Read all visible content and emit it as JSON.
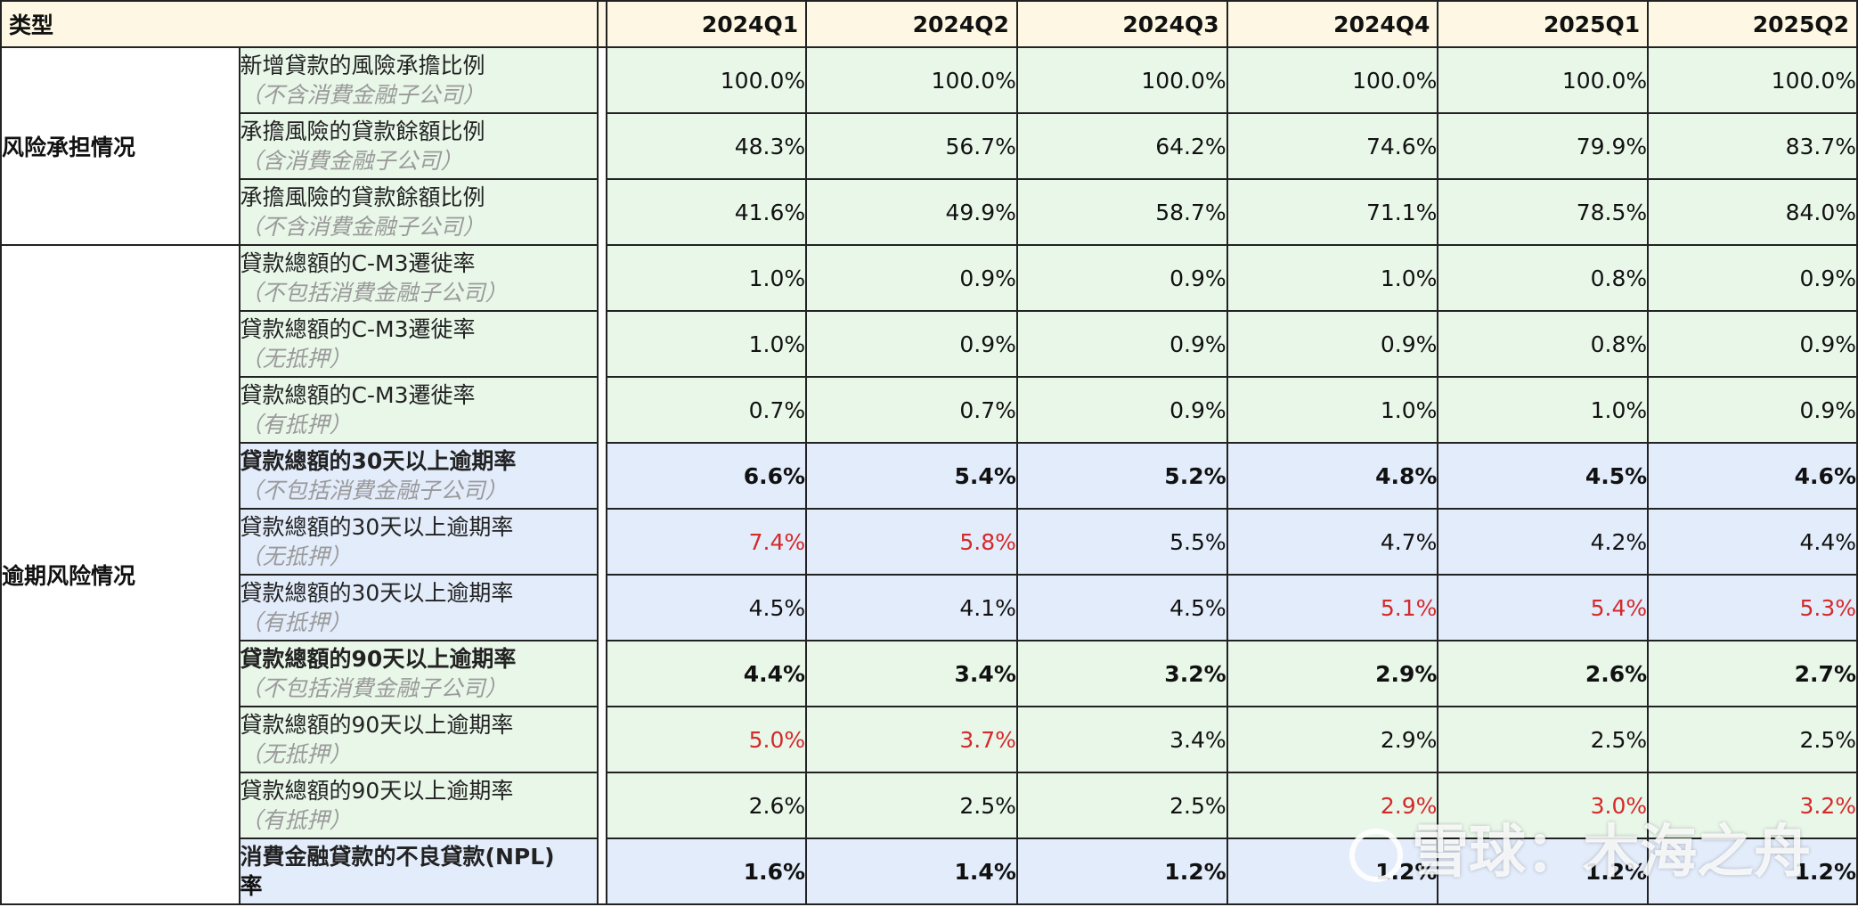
{
  "header": {
    "type_label": "类型",
    "quarters": [
      "2024Q1",
      "2024Q2",
      "2024Q3",
      "2024Q4",
      "2025Q1",
      "2025Q2"
    ]
  },
  "categories": {
    "risk": "风险承担情况",
    "overdue": "逾期风险情况"
  },
  "rows": [
    {
      "main": "新增貸款的風險承擔比例",
      "sub": "（不含消費金融子公司）",
      "values": [
        "100.0%",
        "100.0%",
        "100.0%",
        "100.0%",
        "100.0%",
        "100.0%"
      ]
    },
    {
      "main": "承擔風險的貸款餘額比例",
      "sub": "（含消費金融子公司）",
      "values": [
        "48.3%",
        "56.7%",
        "64.2%",
        "74.6%",
        "79.9%",
        "83.7%"
      ]
    },
    {
      "main": "承擔風險的貸款餘額比例",
      "sub": "（不含消費金融子公司）",
      "values": [
        "41.6%",
        "49.9%",
        "58.7%",
        "71.1%",
        "78.5%",
        "84.0%"
      ]
    },
    {
      "main": "貸款總額的C-M3遷徙率",
      "sub": "（不包括消費金融子公司）",
      "values": [
        "1.0%",
        "0.9%",
        "0.9%",
        "1.0%",
        "0.8%",
        "0.9%"
      ]
    },
    {
      "main": "貸款總額的C-M3遷徙率",
      "sub": "（无抵押）",
      "values": [
        "1.0%",
        "0.9%",
        "0.9%",
        "0.9%",
        "0.8%",
        "0.9%"
      ]
    },
    {
      "main": "貸款總額的C-M3遷徙率",
      "sub": "（有抵押）",
      "values": [
        "0.7%",
        "0.7%",
        "0.9%",
        "1.0%",
        "1.0%",
        "0.9%"
      ]
    },
    {
      "main": "貸款總額的30天以上逾期率",
      "sub": "（不包括消費金融子公司）",
      "values": [
        "6.6%",
        "5.4%",
        "5.2%",
        "4.8%",
        "4.5%",
        "4.6%"
      ]
    },
    {
      "main": "貸款總額的30天以上逾期率",
      "sub": "（无抵押）",
      "values": [
        "7.4%",
        "5.8%",
        "5.5%",
        "4.7%",
        "4.2%",
        "4.4%"
      ]
    },
    {
      "main": "貸款總額的30天以上逾期率",
      "sub": "（有抵押）",
      "values": [
        "4.5%",
        "4.1%",
        "4.5%",
        "5.1%",
        "5.4%",
        "5.3%"
      ]
    },
    {
      "main": "貸款總額的90天以上逾期率",
      "sub": "（不包括消費金融子公司）",
      "values": [
        "4.4%",
        "3.4%",
        "3.2%",
        "2.9%",
        "2.6%",
        "2.7%"
      ]
    },
    {
      "main": "貸款總額的90天以上逾期率",
      "sub": "（无抵押）",
      "values": [
        "5.0%",
        "3.7%",
        "3.4%",
        "2.9%",
        "2.5%",
        "2.5%"
      ]
    },
    {
      "main": "貸款總額的90天以上逾期率",
      "sub": "（有抵押）",
      "values": [
        "2.6%",
        "2.5%",
        "2.5%",
        "2.9%",
        "3.0%",
        "3.2%"
      ]
    },
    {
      "main": "消費金融貸款的不良貸款(NPL)",
      "sub": "率",
      "values": [
        "1.6%",
        "1.4%",
        "1.2%",
        "1.2%",
        "1.2%",
        "1.2%"
      ]
    }
  ],
  "colors": {
    "green_row": "#e9f7e9",
    "blue_row": "#e3ecfb",
    "header": "#fdf7e3",
    "highlight_red": "#d42a2a"
  },
  "watermark": {
    "text": "雪球：木海之舟",
    "icon": "snowball-logo-icon"
  }
}
